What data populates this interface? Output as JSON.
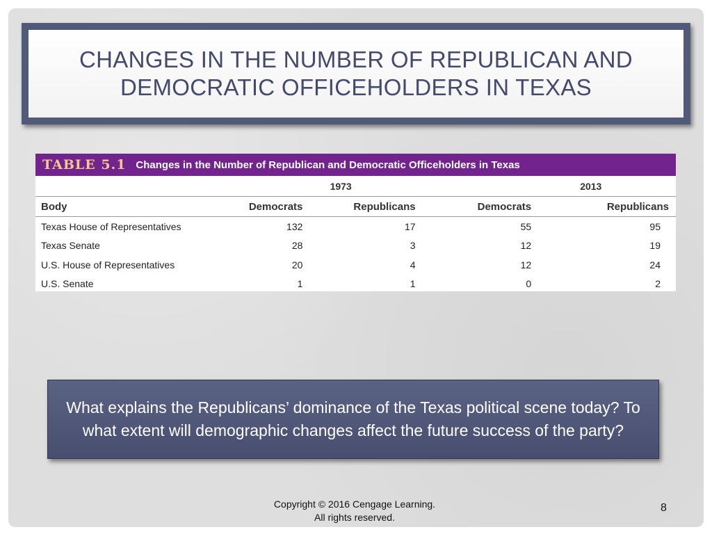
{
  "slide": {
    "title": "Changes in the Number of Republican and Democratic Officeholders in Texas",
    "question": "What explains the Republicans’ dominance of the Texas political scene today? To what extent will demographic changes affect the future success of the party?",
    "copyright_line1": "Copyright © 2016 Cengage Learning.",
    "copyright_line2": "All rights reserved.",
    "page_number": "8"
  },
  "table": {
    "label": "TABLE 5.1",
    "caption": "Changes in the Number of Republican and Democratic Officeholders in Texas",
    "years": [
      "1973",
      "2013"
    ],
    "columns": [
      "Body",
      "Democrats",
      "Republicans",
      "Democrats",
      "Republicans"
    ],
    "rows": [
      [
        "Texas House of Representatives",
        "132",
        "17",
        "55",
        "95"
      ],
      [
        "Texas Senate",
        "28",
        "3",
        "12",
        "19"
      ],
      [
        "U.S. House of Representatives",
        "20",
        "4",
        "12",
        "24"
      ],
      [
        "U.S. Senate",
        "1",
        "1",
        "0",
        "2"
      ]
    ]
  },
  "colors": {
    "title_frame": "#525a7a",
    "title_text": "#434a6b",
    "table_header_bar": "#73238e",
    "table_label": "#f3c98c",
    "question_box": "#4f5678"
  }
}
